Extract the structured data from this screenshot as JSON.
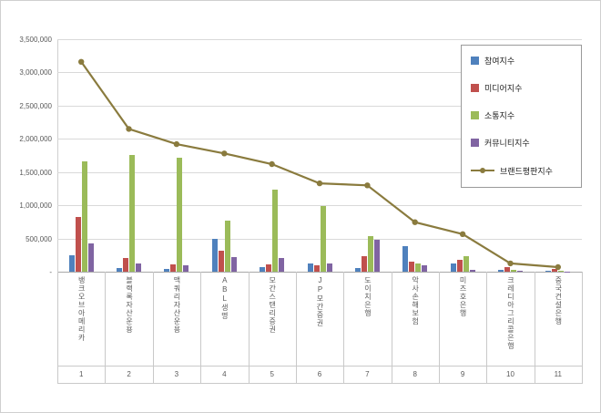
{
  "chart_data": {
    "type": "bar",
    "title": "",
    "categories": [
      "뱅크오브아메리카",
      "블랙록자산운용",
      "맥쿼리자산운용",
      "ABL생명",
      "모간스탠리증권",
      "JP모간증권",
      "도이치은행",
      "악사손해보험",
      "미즈호은행",
      "크레디아그리콜은행",
      "중국건설은행"
    ],
    "category_ranks": [
      "1",
      "2",
      "3",
      "4",
      "5",
      "6",
      "7",
      "8",
      "9",
      "10",
      "11"
    ],
    "ylim": [
      0,
      3500000
    ],
    "ytick_interval": 500000,
    "ytick_labels": [
      "3,500,000",
      "3,000,000",
      "2,500,000",
      "2,000,000",
      "1,500,000",
      "1,000,000",
      "500,000",
      "-"
    ],
    "grid": true,
    "legend_position": "top-right-inside",
    "series": [
      {
        "name": "참여지수",
        "type": "bar",
        "color": "#4f81bd",
        "values": [
          250000,
          60000,
          40000,
          490000,
          70000,
          130000,
          60000,
          380000,
          130000,
          25000,
          15000
        ]
      },
      {
        "name": "미디어지수",
        "type": "bar",
        "color": "#c0504d",
        "values": [
          820000,
          210000,
          110000,
          310000,
          115000,
          90000,
          240000,
          150000,
          180000,
          65000,
          35000
        ]
      },
      {
        "name": "소통지수",
        "type": "bar",
        "color": "#9bbb59",
        "values": [
          1660000,
          1760000,
          1720000,
          770000,
          1230000,
          990000,
          530000,
          130000,
          230000,
          25000,
          12000
        ]
      },
      {
        "name": "커뮤니티지수",
        "type": "bar",
        "color": "#8064a2",
        "values": [
          430000,
          120000,
          100000,
          220000,
          210000,
          120000,
          480000,
          90000,
          25000,
          10000,
          6000
        ]
      },
      {
        "name": "브랜드평판지수",
        "type": "line",
        "color": "#8a7b3e",
        "values": [
          3160000,
          2150000,
          1920000,
          1780000,
          1620000,
          1330000,
          1300000,
          745000,
          565000,
          125000,
          68000
        ]
      }
    ]
  }
}
